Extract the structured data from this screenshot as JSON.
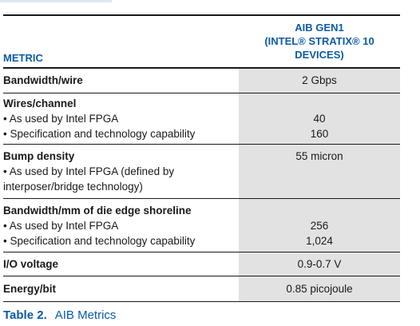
{
  "table": {
    "header": {
      "metric": "METRIC",
      "col_line1": "AIB GEN1",
      "col_line2": "(INTEL® STRATIX® 10",
      "col_line3": "DEVICES)"
    },
    "rows": [
      {
        "title": "Bandwidth/wire",
        "subs": [],
        "values": [
          "2 Gbps"
        ]
      },
      {
        "title": "Wires/channel",
        "subs": [
          "• As used by Intel FPGA",
          "• Specification and technology capability"
        ],
        "values": [
          "",
          "40",
          "160"
        ]
      },
      {
        "title": "Bump density",
        "subs": [
          "• As used by Intel FPGA (defined by",
          "interposer/bridge technology)"
        ],
        "values": [
          "55 micron"
        ]
      },
      {
        "title": "Bandwidth/mm of die edge shoreline",
        "subs": [
          "• As used by Intel FPGA",
          "• Specification and technology capability"
        ],
        "values": [
          "",
          "256",
          "1,024"
        ]
      },
      {
        "title": "I/O voltage",
        "subs": [],
        "values": [
          "0.9-0.7 V"
        ]
      },
      {
        "title": "Energy/bit",
        "subs": [],
        "values": [
          "0.85 picojoule"
        ]
      }
    ]
  },
  "caption": {
    "label": "Table 2.",
    "text": "AIB Metrics"
  }
}
